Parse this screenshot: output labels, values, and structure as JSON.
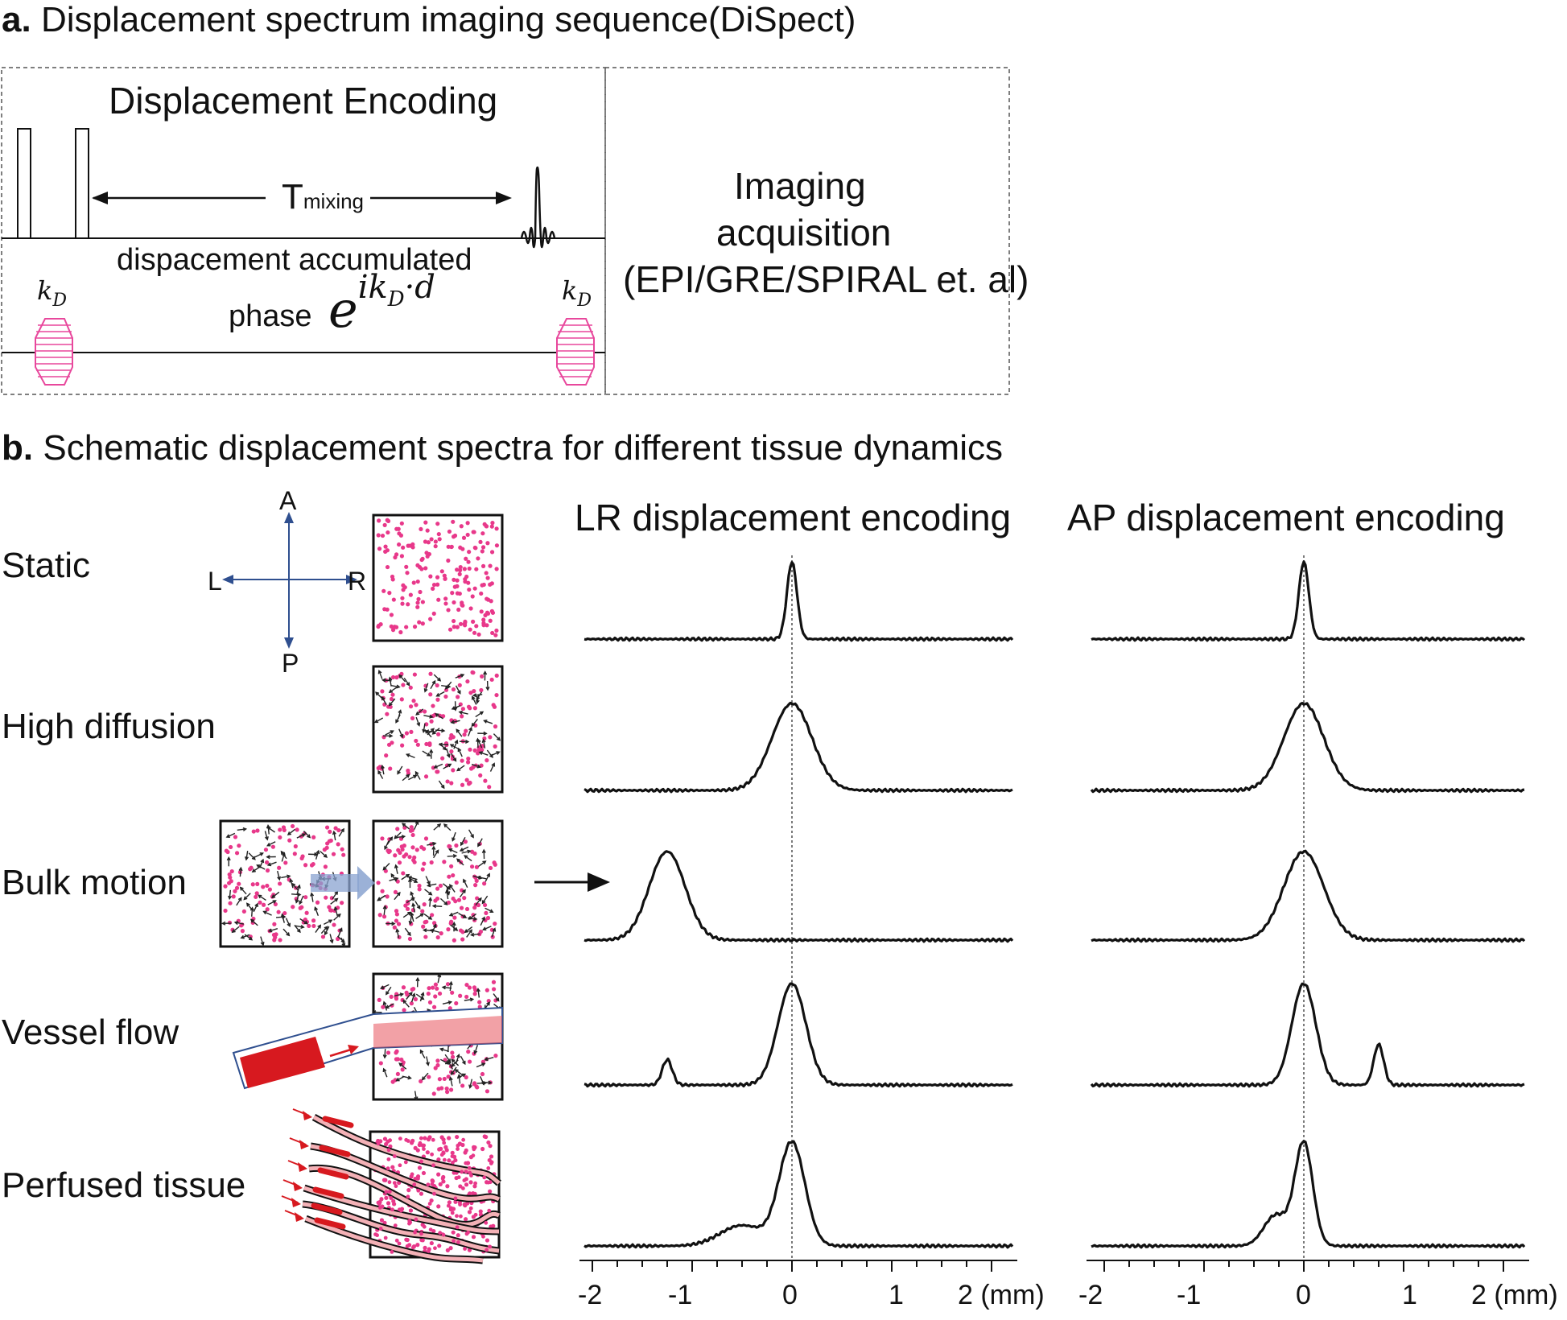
{
  "panel_a": {
    "letter": "a.",
    "title": "Displacement spectrum imaging sequence(DiSpect)",
    "encoding_title": "Displacement Encoding",
    "t_main": "T",
    "t_sub": "mixing",
    "accumulated": "dispacement accumulated",
    "phase_word": "phase",
    "phase_formula_base": "e",
    "phase_formula_exp": "ik",
    "phase_formula_exp_sub": "D",
    "phase_formula_exp_tail": "·d",
    "kd_main": "k",
    "kd_sub": "D",
    "imaging_lines": [
      "Imaging",
      "acquisition",
      "(EPI/GRE/SPIRAL et. al)"
    ]
  },
  "panel_b": {
    "letter": "b.",
    "title": "Schematic displacement spectra for different tissue dynamics",
    "compass": {
      "A": "A",
      "P": "P",
      "L": "L",
      "R": "R"
    },
    "rows": [
      "Static",
      "High diffusion",
      "Bulk motion",
      "Vessel flow",
      "Perfused tissue"
    ],
    "lr_title": "LR displacement encoding",
    "ap_title": "AP displacement encoding",
    "tick_labels": [
      "-2",
      "-1",
      "0",
      "1",
      "2 (mm)"
    ]
  },
  "colors": {
    "pink": "#e8388a",
    "blue_arrow": "#2f4f8f",
    "red_vessel": "#d7191f",
    "gradient_pink": "#e8479c"
  },
  "chart_data": [
    {
      "type": "line",
      "title": "LR displacement encoding",
      "x_range": [
        -2,
        2
      ],
      "xticks": [
        -2,
        -1,
        0,
        1,
        2
      ],
      "x_unit": "mm",
      "series": [
        {
          "name": "Static",
          "peaks": [
            {
              "center": 0.0,
              "height": 1.0,
              "width": 0.05
            }
          ]
        },
        {
          "name": "High diffusion",
          "peaks": [
            {
              "center": 0.0,
              "height": 1.0,
              "width": 0.2
            }
          ]
        },
        {
          "name": "Bulk motion",
          "peaks": [
            {
              "center": -1.25,
              "height": 1.0,
              "width": 0.18
            }
          ]
        },
        {
          "name": "Vessel flow",
          "peaks": [
            {
              "center": 0.0,
              "height": 1.0,
              "width": 0.14
            },
            {
              "center": -1.25,
              "height": 0.25,
              "width": 0.05
            }
          ]
        },
        {
          "name": "Perfused tissue",
          "peaks": [
            {
              "center": 0.0,
              "height": 1.0,
              "width": 0.13
            },
            {
              "center": -0.5,
              "height": 0.2,
              "width": 0.22
            }
          ]
        }
      ]
    },
    {
      "type": "line",
      "title": "AP displacement encoding",
      "x_range": [
        -2,
        2
      ],
      "xticks": [
        -2,
        -1,
        0,
        1,
        2
      ],
      "x_unit": "mm",
      "series": [
        {
          "name": "Static",
          "peaks": [
            {
              "center": 0.0,
              "height": 1.0,
              "width": 0.05
            }
          ]
        },
        {
          "name": "High diffusion",
          "peaks": [
            {
              "center": 0.0,
              "height": 1.0,
              "width": 0.2
            }
          ]
        },
        {
          "name": "Bulk motion",
          "peaks": [
            {
              "center": 0.0,
              "height": 1.0,
              "width": 0.2
            }
          ]
        },
        {
          "name": "Vessel flow",
          "peaks": [
            {
              "center": 0.0,
              "height": 1.0,
              "width": 0.12
            },
            {
              "center": 0.75,
              "height": 0.4,
              "width": 0.05
            }
          ]
        },
        {
          "name": "Perfused tissue",
          "peaks": [
            {
              "center": 0.0,
              "height": 1.0,
              "width": 0.09
            },
            {
              "center": -0.28,
              "height": 0.3,
              "width": 0.12
            }
          ]
        }
      ]
    }
  ]
}
